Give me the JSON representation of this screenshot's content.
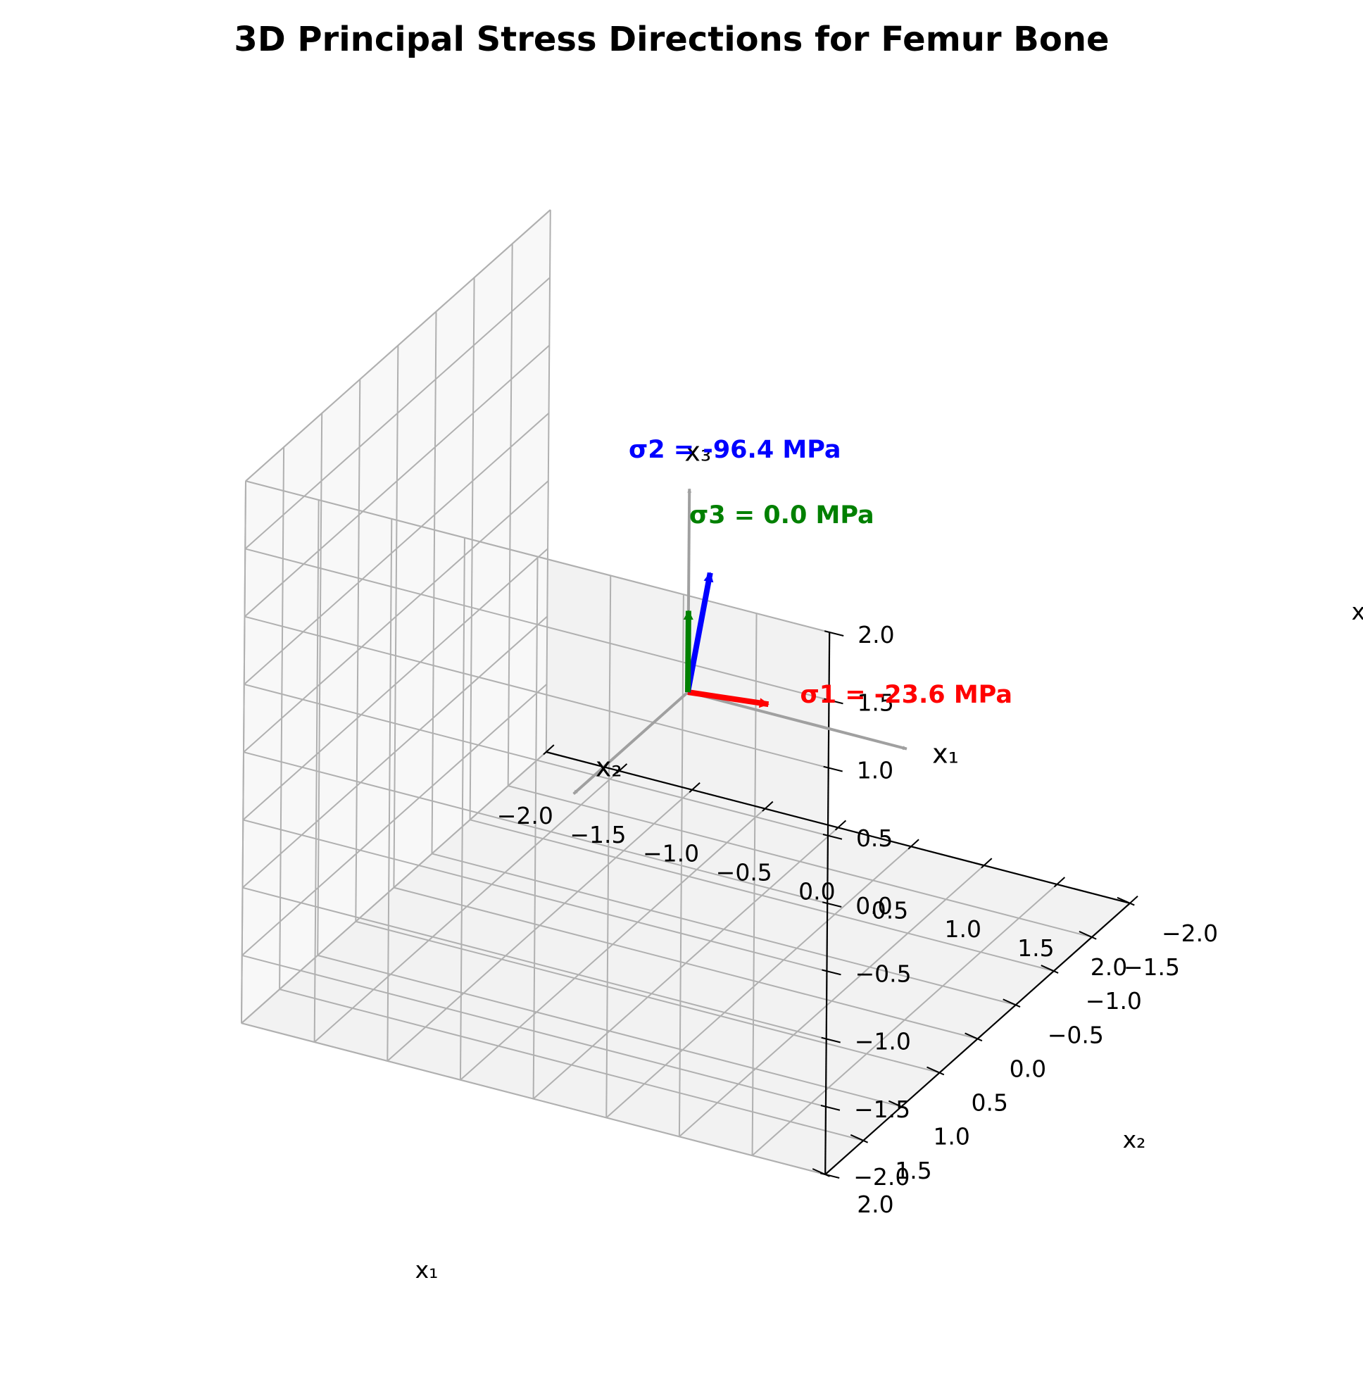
{
  "chart_data": {
    "type": "3d-quiver",
    "title": "3D Principal Stress Directions for Femur Bone",
    "xlabel": "x₁",
    "ylabel": "x₂",
    "zlabel": "x₃",
    "xlim": [
      -2.0,
      2.0
    ],
    "ylim": [
      -2.0,
      2.0
    ],
    "zlim": [
      -2.0,
      2.0
    ],
    "ticks": [
      "−2.0",
      "−1.5",
      "−1.0",
      "−0.5",
      "0.0",
      "0.5",
      "1.0",
      "1.5",
      "2.0"
    ],
    "tick_values": [
      -2.0,
      -1.5,
      -1.0,
      -0.5,
      0.0,
      0.5,
      1.0,
      1.5,
      2.0
    ],
    "grid": true,
    "reference_axes": [
      {
        "label": "x₁",
        "vector": [
          1.5,
          0,
          0
        ],
        "color": "#a0a0a0"
      },
      {
        "label": "x₂",
        "vector": [
          0,
          1.5,
          0
        ],
        "color": "#a0a0a0"
      },
      {
        "label": "x₃",
        "vector": [
          0,
          0,
          1.5
        ],
        "color": "#a0a0a0"
      }
    ],
    "series": [
      {
        "name": "σ1",
        "label": "σ1 = -23.6 MPa",
        "value": -23.6,
        "unit": "MPa",
        "vector": [
          0.5,
          -0.1,
          0.0
        ],
        "color": "#ff0000"
      },
      {
        "name": "σ2",
        "label": "σ2 = -96.4 MPa",
        "value": -96.4,
        "unit": "MPa",
        "vector": [
          0.25,
          0.2,
          1.05
        ],
        "color": "#0000ff"
      },
      {
        "name": "σ3",
        "label": "σ3 = 0.0 MPa",
        "value": 0.0,
        "unit": "MPa",
        "vector": [
          0.0,
          0.0,
          0.6
        ],
        "color": "#008000"
      }
    ]
  }
}
